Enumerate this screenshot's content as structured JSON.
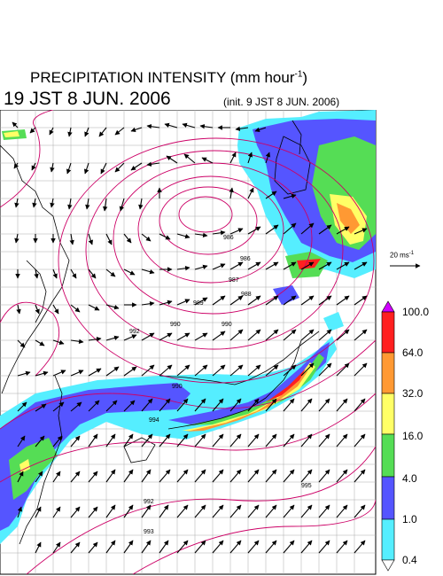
{
  "header": {
    "title": "PRECIPITATION INTENSITY (mm hour",
    "title_exp": "-1",
    "title_tail": ")",
    "valid_time": "19 JST 8 JUN. 2006",
    "init_time": "(init. 9 JST 8 JUN. 2006)"
  },
  "wind_reference": {
    "label": "20 ms",
    "label_exp": "-1",
    "magnitude": 20
  },
  "colorbar": {
    "labels": [
      "100.0",
      "64.0",
      "32.0",
      "16.0",
      "4.0",
      "1.0",
      "0.4"
    ],
    "colors": [
      "#d000ff",
      "#ff2020",
      "#ff9933",
      "#ffff66",
      "#55dd55",
      "#5555ff",
      "#55eeff"
    ]
  },
  "isobars": {
    "labels": [
      "986",
      "986",
      "987",
      "988",
      "989",
      "990",
      "990",
      "992",
      "990",
      "994",
      "992",
      "993",
      "995"
    ],
    "color": "#cc0066"
  },
  "precip_bands": {
    "rain_colors": [
      "#55eeff",
      "#5555ff",
      "#55dd55",
      "#ffff66",
      "#ff9933",
      "#ff2020"
    ]
  }
}
